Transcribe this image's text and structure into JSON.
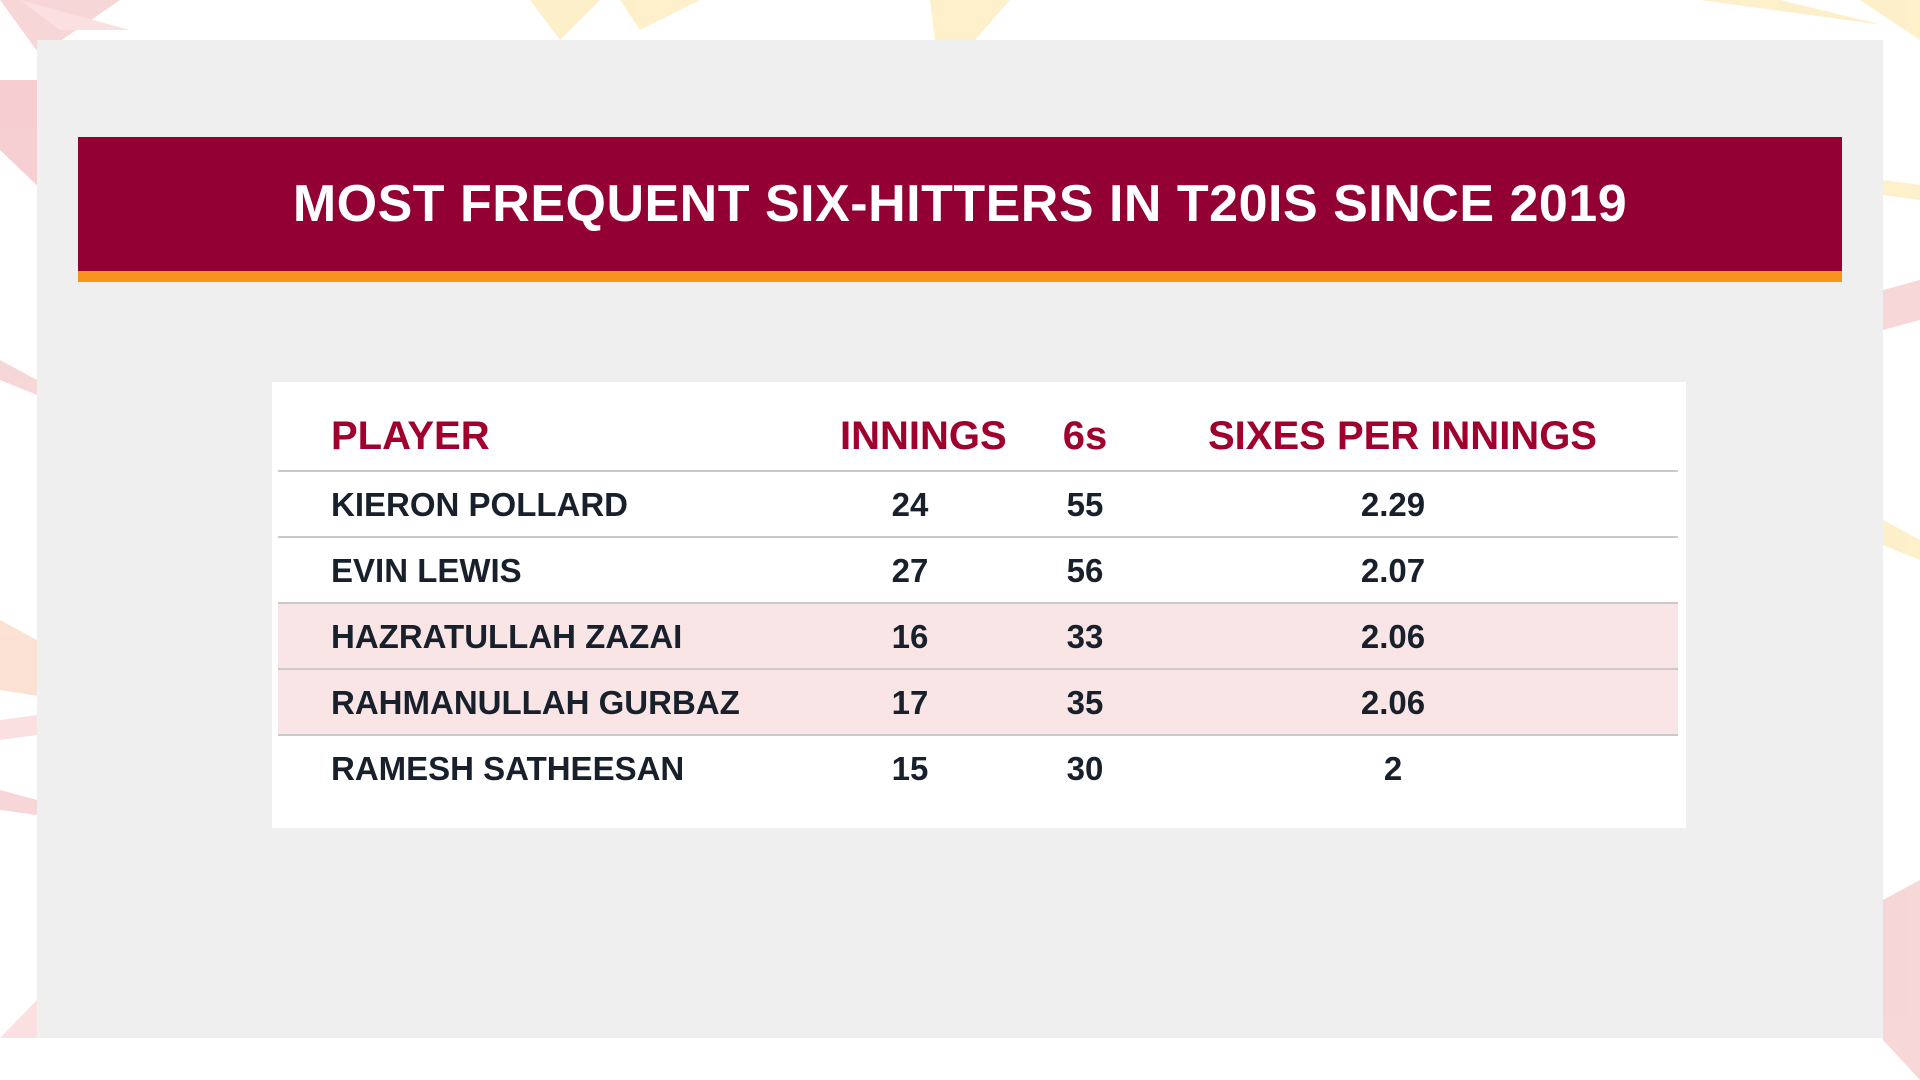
{
  "title": "MOST FREQUENT SIX-HITTERS IN T20IS SINCE 2019",
  "colors": {
    "banner": "#930033",
    "banner_stripe": "#f79420",
    "header_text": "#a0002e",
    "highlight_row": "#f9e5e6",
    "panel": "#efefef"
  },
  "chart_data": {
    "type": "table",
    "columns": [
      "PLAYER",
      "INNINGS",
      "6s",
      "SIXES PER INNINGS"
    ],
    "rows": [
      {
        "player": "KIERON POLLARD",
        "innings": "24",
        "sixes": "55",
        "sixes_per_innings": "2.29",
        "highlight": false
      },
      {
        "player": "EVIN LEWIS",
        "innings": "27",
        "sixes": "56",
        "sixes_per_innings": "2.07",
        "highlight": false
      },
      {
        "player": "HAZRATULLAH ZAZAI",
        "innings": "16",
        "sixes": "33",
        "sixes_per_innings": "2.06",
        "highlight": true
      },
      {
        "player": "RAHMANULLAH GURBAZ",
        "innings": "17",
        "sixes": "35",
        "sixes_per_innings": "2.06",
        "highlight": true
      },
      {
        "player": "RAMESH SATHEESAN",
        "innings": "15",
        "sixes": "30",
        "sixes_per_innings": "2",
        "highlight": false
      }
    ]
  }
}
